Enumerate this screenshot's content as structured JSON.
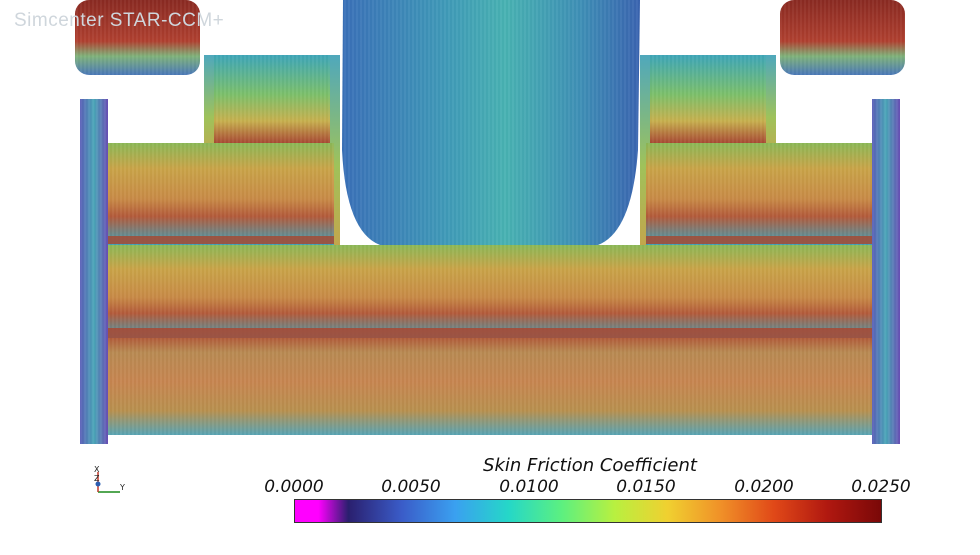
{
  "watermark": "Simcenter STAR-CCM+",
  "legend": {
    "title": "Skin Friction Coefficient",
    "ticks": [
      "0.0000",
      "0.0050",
      "0.0100",
      "0.0150",
      "0.0200",
      "0.0250"
    ],
    "colors": [
      "#ff00ff",
      "#2a1f6e",
      "#3a5cc8",
      "#3aa0f0",
      "#25d7c8",
      "#5cf080",
      "#b8f040",
      "#f0d030",
      "#f09028",
      "#e04818",
      "#b01810",
      "#7a0808"
    ]
  },
  "axes": {
    "x_label": "X",
    "y_label": "Y",
    "z_label": "Z"
  }
}
